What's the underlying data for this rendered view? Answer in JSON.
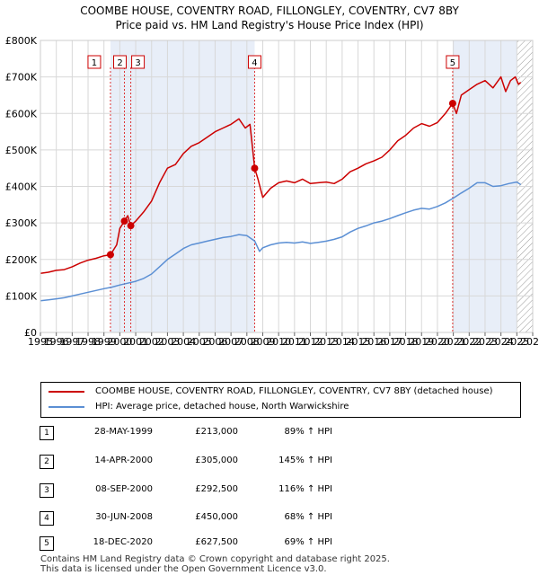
{
  "title_line1": "COOMBE HOUSE, COVENTRY ROAD, FILLONGLEY, COVENTRY, CV7 8BY",
  "title_line2": "Price paid vs. HM Land Registry's House Price Index (HPI)",
  "colors": {
    "property": "#cc0000",
    "hpi": "#5b8fd4",
    "shade": "#e8eef8",
    "hatch": "#999999"
  },
  "chart_data": {
    "type": "line",
    "ylim": [
      0,
      800000
    ],
    "xlim": [
      1995,
      2026
    ],
    "ytick_labels": [
      "£0",
      "£100K",
      "£200K",
      "£300K",
      "£400K",
      "£500K",
      "£600K",
      "£700K",
      "£800K"
    ],
    "ytick_values": [
      0,
      100000,
      200000,
      300000,
      400000,
      500000,
      600000,
      700000,
      800000
    ],
    "xtick_labels": [
      "1995",
      "1996",
      "1997",
      "1998",
      "1999",
      "2000",
      "2001",
      "2002",
      "2003",
      "2004",
      "2005",
      "2006",
      "2007",
      "2008",
      "2009",
      "2010",
      "2011",
      "2012",
      "2013",
      "2014",
      "2015",
      "2016",
      "2017",
      "2018",
      "2019",
      "2020",
      "2021",
      "2022",
      "2023",
      "2024",
      "2025",
      "2026"
    ],
    "series": [
      {
        "name": "COOMBE HOUSE, COVENTRY ROAD, FILLONGLEY, COVENTRY, CV7 8BY (detached house)",
        "color": "#cc0000",
        "x": [
          1995.0,
          1995.5,
          1996.0,
          1996.5,
          1997.0,
          1997.5,
          1998.0,
          1998.5,
          1999.0,
          1999.41,
          1999.8,
          2000.0,
          2000.29,
          2000.5,
          2000.69,
          2001.0,
          2001.5,
          2002.0,
          2002.5,
          2003.0,
          2003.5,
          2004.0,
          2004.5,
          2005.0,
          2005.5,
          2006.0,
          2006.5,
          2007.0,
          2007.5,
          2007.9,
          2008.2,
          2008.49,
          2008.7,
          2009.0,
          2009.5,
          2010.0,
          2010.5,
          2011.0,
          2011.5,
          2012.0,
          2012.5,
          2013.0,
          2013.5,
          2014.0,
          2014.5,
          2015.0,
          2015.5,
          2016.0,
          2016.5,
          2017.0,
          2017.5,
          2018.0,
          2018.5,
          2019.0,
          2019.5,
          2020.0,
          2020.5,
          2020.96,
          2021.2,
          2021.5,
          2022.0,
          2022.5,
          2023.0,
          2023.5,
          2024.0,
          2024.3,
          2024.6,
          2024.9,
          2025.1,
          2025.25
        ],
        "values": [
          162000,
          165000,
          170000,
          172000,
          180000,
          190000,
          198000,
          203000,
          210000,
          213000,
          240000,
          285000,
          305000,
          320000,
          292500,
          305000,
          330000,
          360000,
          410000,
          450000,
          460000,
          490000,
          510000,
          520000,
          535000,
          550000,
          560000,
          570000,
          585000,
          560000,
          570000,
          450000,
          420000,
          370000,
          395000,
          410000,
          415000,
          410000,
          420000,
          408000,
          410000,
          412000,
          408000,
          420000,
          440000,
          450000,
          462000,
          470000,
          480000,
          500000,
          525000,
          540000,
          560000,
          572000,
          565000,
          575000,
          600000,
          627500,
          600000,
          650000,
          665000,
          680000,
          690000,
          670000,
          700000,
          660000,
          690000,
          700000,
          680000,
          685000
        ]
      },
      {
        "name": "HPI: Average price, detached house, North Warwickshire",
        "color": "#5b8fd4",
        "x": [
          1995.0,
          1995.5,
          1996.0,
          1996.5,
          1997.0,
          1997.5,
          1998.0,
          1998.5,
          1999.0,
          1999.5,
          2000.0,
          2000.5,
          2001.0,
          2001.5,
          2002.0,
          2002.5,
          2003.0,
          2003.5,
          2004.0,
          2004.5,
          2005.0,
          2005.5,
          2006.0,
          2006.5,
          2007.0,
          2007.5,
          2008.0,
          2008.5,
          2008.8,
          2009.0,
          2009.5,
          2010.0,
          2010.5,
          2011.0,
          2011.5,
          2012.0,
          2012.5,
          2013.0,
          2013.5,
          2014.0,
          2014.5,
          2015.0,
          2015.5,
          2016.0,
          2016.5,
          2017.0,
          2017.5,
          2018.0,
          2018.5,
          2019.0,
          2019.5,
          2020.0,
          2020.5,
          2021.0,
          2021.5,
          2022.0,
          2022.5,
          2023.0,
          2023.5,
          2024.0,
          2024.5,
          2025.0,
          2025.25
        ],
        "values": [
          87000,
          89000,
          92000,
          95000,
          100000,
          105000,
          110000,
          115000,
          120000,
          124000,
          130000,
          135000,
          140000,
          148000,
          160000,
          180000,
          200000,
          215000,
          230000,
          240000,
          245000,
          250000,
          255000,
          260000,
          263000,
          268000,
          265000,
          250000,
          222000,
          232000,
          240000,
          245000,
          247000,
          245000,
          248000,
          244000,
          247000,
          250000,
          255000,
          262000,
          275000,
          285000,
          292000,
          300000,
          305000,
          312000,
          320000,
          328000,
          335000,
          340000,
          338000,
          345000,
          355000,
          368000,
          382000,
          395000,
          410000,
          410000,
          400000,
          402000,
          408000,
          412000,
          405000
        ]
      }
    ],
    "sales": [
      {
        "label": "1",
        "date": "28-MAY-1999",
        "price": "£213,000",
        "hpi": "89% ↑ HPI",
        "x": 1999.41,
        "y": 213000
      },
      {
        "label": "2",
        "date": "14-APR-2000",
        "price": "£305,000",
        "hpi": "145% ↑ HPI",
        "x": 2000.29,
        "y": 305000
      },
      {
        "label": "3",
        "date": "08-SEP-2000",
        "price": "£292,500",
        "hpi": "116% ↑ HPI",
        "x": 2000.69,
        "y": 292500
      },
      {
        "label": "4",
        "date": "30-JUN-2008",
        "price": "£450,000",
        "hpi": "68% ↑ HPI",
        "x": 2008.49,
        "y": 450000
      },
      {
        "label": "5",
        "date": "18-DEC-2020",
        "price": "£627,500",
        "hpi": "69% ↑ HPI",
        "x": 2020.96,
        "y": 627500
      }
    ],
    "shaded_periods": [
      [
        1999.41,
        2008.49
      ],
      [
        2020.96,
        2025.0
      ]
    ],
    "forecast_start": 2025.0
  },
  "legend": {
    "property_label": "COOMBE HOUSE, COVENTRY ROAD, FILLONGLEY, COVENTRY, CV7 8BY (detached house)",
    "hpi_label": "HPI: Average price, detached house, North Warwickshire"
  },
  "footer_line1": "Contains HM Land Registry data © Crown copyright and database right 2025.",
  "footer_line2": "This data is licensed under the Open Government Licence v3.0."
}
